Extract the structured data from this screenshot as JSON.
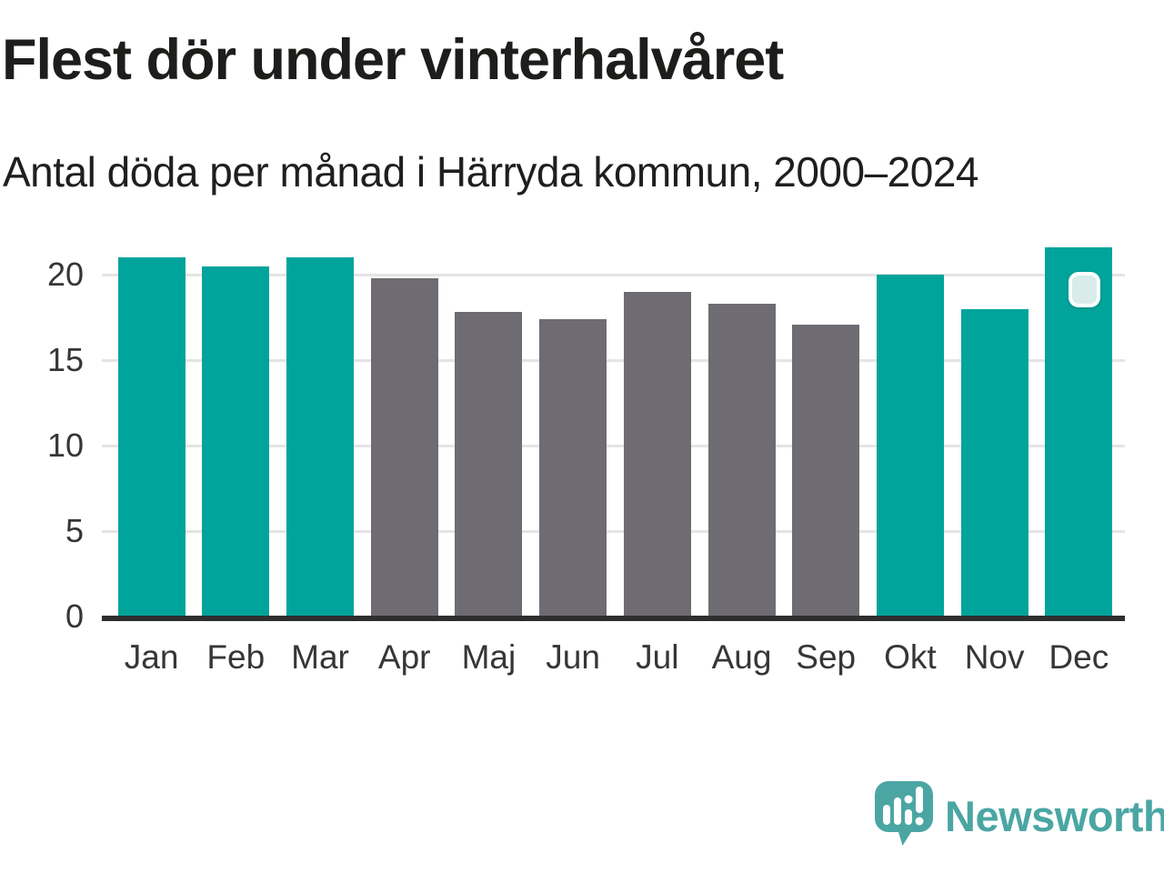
{
  "title": "Flest dör under vinterhalvåret",
  "subtitle": "Antal döda per månad i Härryda kommun, 2000–2024",
  "chart_data": {
    "type": "bar",
    "categories": [
      "Jan",
      "Feb",
      "Mar",
      "Apr",
      "Maj",
      "Jun",
      "Jul",
      "Aug",
      "Sep",
      "Okt",
      "Nov",
      "Dec"
    ],
    "values": [
      21.0,
      20.5,
      21.0,
      19.8,
      17.8,
      17.4,
      19.0,
      18.3,
      17.1,
      20.0,
      18.0,
      21.6
    ],
    "highlighted": [
      true,
      true,
      true,
      false,
      false,
      false,
      false,
      false,
      false,
      true,
      true,
      true
    ],
    "highlight_color": "#00a49b",
    "base_color": "#6e6c72",
    "yticks": [
      0,
      5,
      10,
      15,
      20
    ],
    "yticklabels": [
      "0",
      "5",
      "10",
      "15",
      "20"
    ],
    "ylim": [
      0,
      22
    ],
    "grid": true,
    "legend": "none",
    "marker_month": "Dec",
    "marker_fill": "#d9ece9",
    "axis_color": "#2e2e2e",
    "gridline_color": "#e4e4e4"
  },
  "branding": {
    "logo_text": "Newsworthy",
    "logo_color": "#4ba6a3"
  }
}
